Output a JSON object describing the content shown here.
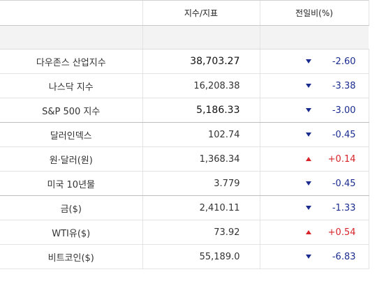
{
  "header": {
    "col_index": "지수/지표",
    "col_change": "전일비(%)"
  },
  "colors": {
    "down": "#1a2c8f",
    "up": "#d6242a",
    "spacer_bg": "#f3f3f3"
  },
  "rows": [
    {
      "name": "다우존스 산업지수",
      "value": "38,703.27",
      "direction": "down",
      "direction_icon": "down-triangle-icon",
      "change": "-2.60"
    },
    {
      "name": "나스닥 지수",
      "value": "16,208.38",
      "direction": "down",
      "direction_icon": "down-triangle-icon",
      "change": "-3.38"
    },
    {
      "name": "S&P 500 지수",
      "value": "5,186.33",
      "direction": "down",
      "direction_icon": "down-triangle-icon",
      "change": "-3.00"
    },
    {
      "name": "달러인덱스",
      "value": "102.74",
      "direction": "down",
      "direction_icon": "down-triangle-icon",
      "change": "-0.45"
    },
    {
      "name": "원·달러(원)",
      "value": "1,368.34",
      "direction": "up",
      "direction_icon": "up-triangle-icon",
      "change": "+0.14"
    },
    {
      "name": "미국 10년물",
      "value": "3.779",
      "direction": "down",
      "direction_icon": "down-triangle-icon",
      "change": "-0.45"
    },
    {
      "name": "금($)",
      "value": "2,410.11",
      "direction": "down",
      "direction_icon": "down-triangle-icon",
      "change": "-1.33"
    },
    {
      "name": "WTI유($)",
      "value": "73.92",
      "direction": "up",
      "direction_icon": "up-triangle-icon",
      "change": "+0.54"
    },
    {
      "name": "비트코인($)",
      "value": "55,189.0",
      "direction": "down",
      "direction_icon": "down-triangle-icon",
      "change": "-6.83"
    }
  ]
}
